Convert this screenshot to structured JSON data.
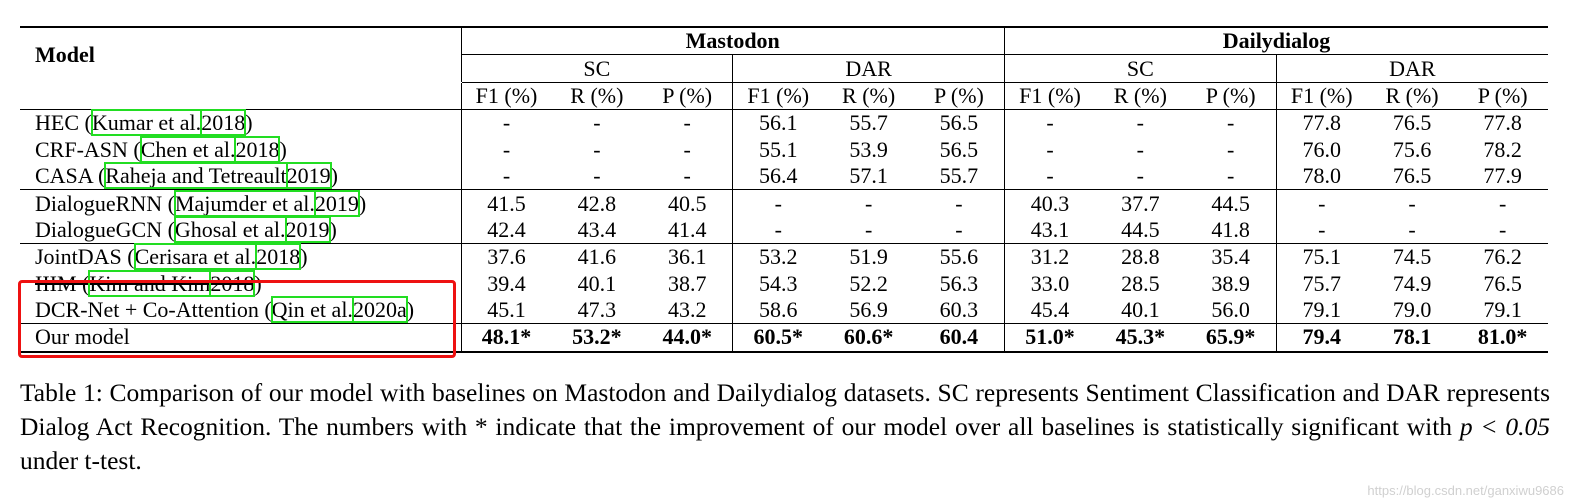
{
  "table": {
    "model_header": "Model",
    "datasets": [
      "Mastodon",
      "Dailydialog"
    ],
    "tasks": [
      "SC",
      "DAR",
      "SC",
      "DAR"
    ],
    "metrics": [
      "F1 (%)",
      "R (%)",
      "P (%)",
      "F1 (%)",
      "R (%)",
      "P (%)",
      "F1 (%)",
      "R (%)",
      "P (%)",
      "F1 (%)",
      "R (%)",
      "P (%)"
    ],
    "rows": [
      {
        "name": "HEC (",
        "cite": [
          "Kumar et al.",
          "2018"
        ],
        "tail": ")",
        "values": [
          "-",
          "-",
          "-",
          "56.1",
          "55.7",
          "56.5",
          "-",
          "-",
          "-",
          "77.8",
          "76.5",
          "77.8"
        ]
      },
      {
        "name": "CRF-ASN (",
        "cite": [
          "Chen et al.",
          "2018"
        ],
        "tail": ")",
        "values": [
          "-",
          "-",
          "-",
          "55.1",
          "53.9",
          "56.5",
          "-",
          "-",
          "-",
          "76.0",
          "75.6",
          "78.2"
        ]
      },
      {
        "name": "CASA (",
        "cite": [
          "Raheja and Tetreault",
          "2019"
        ],
        "tail": ")",
        "values": [
          "-",
          "-",
          "-",
          "56.4",
          "57.1",
          "55.7",
          "-",
          "-",
          "-",
          "78.0",
          "76.5",
          "77.9"
        ]
      },
      {
        "name": "DialogueRNN (",
        "cite": [
          "Majumder et al.",
          "2019"
        ],
        "tail": ")",
        "values": [
          "41.5",
          "42.8",
          "40.5",
          "-",
          "-",
          "-",
          "40.3",
          "37.7",
          "44.5",
          "-",
          "-",
          "-"
        ]
      },
      {
        "name": "DialogueGCN (",
        "cite": [
          "Ghosal et al.",
          "2019"
        ],
        "tail": ")",
        "values": [
          "42.4",
          "43.4",
          "41.4",
          "-",
          "-",
          "-",
          "43.1",
          "44.5",
          "41.8",
          "-",
          "-",
          "-"
        ]
      },
      {
        "name": "JointDAS (",
        "cite": [
          "Cerisara et al.",
          "2018"
        ],
        "tail": ")",
        "values": [
          "37.6",
          "41.6",
          "36.1",
          "53.2",
          "51.9",
          "55.6",
          "31.2",
          "28.8",
          "35.4",
          "75.1",
          "74.5",
          "76.2"
        ]
      },
      {
        "name": "IIIM (",
        "cite": [
          "Kim and Kim",
          "2018"
        ],
        "tail": ")",
        "values": [
          "39.4",
          "40.1",
          "38.7",
          "54.3",
          "52.2",
          "56.3",
          "33.0",
          "28.5",
          "38.9",
          "75.7",
          "74.9",
          "76.5"
        ]
      },
      {
        "name": "DCR-Net + Co-Attention (",
        "cite": [
          "Qin et al.",
          "2020a"
        ],
        "tail": ")",
        "values": [
          "45.1",
          "47.3",
          "43.2",
          "58.6",
          "56.9",
          "60.3",
          "45.4",
          "40.1",
          "56.0",
          "79.1",
          "79.0",
          "79.1"
        ]
      }
    ],
    "ours": {
      "name": "Our model",
      "values": [
        "48.1*",
        "53.2*",
        "44.0*",
        "60.5*",
        "60.6*",
        "60.4",
        "51.0*",
        "45.3*",
        "65.9*",
        "79.4",
        "78.1",
        "81.0*"
      ]
    }
  },
  "caption": {
    "part1": "Table 1: Comparison of our model with baselines on Mastodon and Dailydialog datasets. SC represents Sentiment Classification and DAR represents Dialog Act Recognition. The numbers with * indicate that the improvement of our model over all baselines is statistically significant with ",
    "math": "p < 0.05",
    "part2": " under t-test."
  },
  "watermark": "https://blog.csdn.net/ganxiwu9686",
  "colors": {
    "citation_box": "#22dd22",
    "highlight_box": "#ee1111"
  }
}
